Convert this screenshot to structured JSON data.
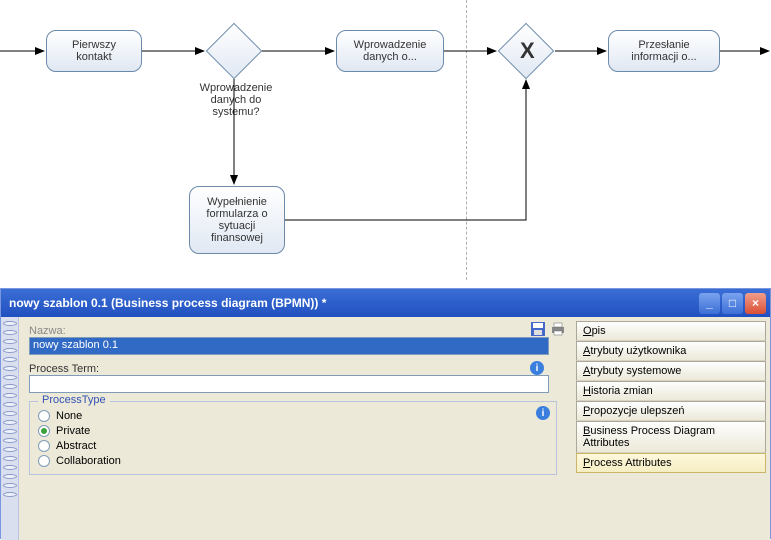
{
  "diagram": {
    "tasks": {
      "first_contact": "Pierwszy\nkontakt",
      "data_entry": "Wprowadzenie\ndanych o...",
      "form_fill": "Wypełnienie\nformularza o\nsytuacji\nfinansowej",
      "send_info": "Przesłanie\ninformacji o..."
    },
    "gateway1_label": "Wprowadzenie\ndanych do systemu?",
    "gateway2_symbol": "X",
    "colors": {
      "node_border": "#6b8aaa",
      "node_fill_top": "#ffffff",
      "node_fill_bottom": "#e0e8f3",
      "arrow": "#000000",
      "dashed": "#b0b0b0"
    }
  },
  "panel": {
    "title": "nowy szablon 0.1  (Business process diagram (BPMN)) *",
    "form": {
      "name_label": "Nazwa:",
      "name_value": "nowy szablon 0.1",
      "process_term_label": "Process Term:",
      "process_term_value": "",
      "group_title": "ProcessType",
      "radios": [
        {
          "label": "None",
          "checked": false
        },
        {
          "label": "Private",
          "checked": true
        },
        {
          "label": "Abstract",
          "checked": false
        },
        {
          "label": "Collaboration",
          "checked": false
        }
      ]
    },
    "tabs": [
      {
        "label": "Opis",
        "u": 0
      },
      {
        "label": "Atrybuty użytkownika",
        "u": 0
      },
      {
        "label": "Atrybuty systemowe",
        "u": 0
      },
      {
        "label": "Historia zmian",
        "u": 0
      },
      {
        "label": "Propozycje ulepszeń",
        "u": 0
      },
      {
        "label": "Business Process Diagram Attributes",
        "u": 0
      },
      {
        "label": "Process Attributes",
        "u": 0,
        "active": true
      }
    ]
  }
}
